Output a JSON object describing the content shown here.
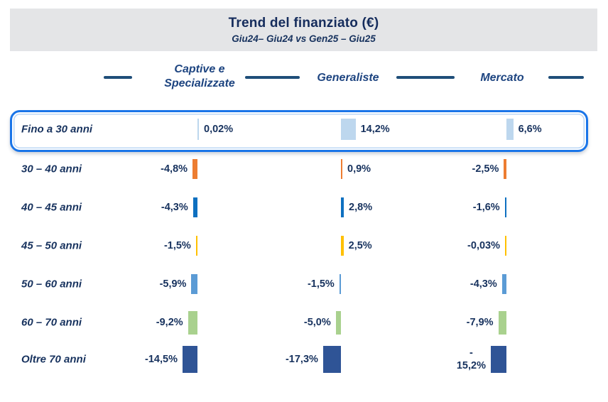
{
  "header": {
    "title": "Trend del finanziato (€)",
    "subtitle": "Giu24– Giu24 vs Gen25 – Giu25"
  },
  "chart_data": {
    "type": "bar",
    "orientation": "diverging-horizontal-by-column",
    "unit": "%",
    "title": "Trend del finanziato (€)",
    "subtitle": "Giu24– Giu24 vs Gen25 – Giu25",
    "groups": [
      "Captive e\nSpecializzate",
      "Generaliste",
      "Mercato"
    ],
    "categories": [
      "Fino a 30 anni",
      "30 – 40 anni",
      "40 – 45 anni",
      "45 – 50 anni",
      "50 – 60 anni",
      "60 – 70 anni",
      "Oltre 70 anni"
    ],
    "series": [
      {
        "name": "Captive e Specializzate",
        "values": [
          0.02,
          -4.8,
          -4.3,
          -1.5,
          -5.9,
          -9.2,
          -14.5
        ],
        "labels": [
          "0,02%",
          "-4,8%",
          "-4,3%",
          "-1,5%",
          "-5,9%",
          "-9,2%",
          "-14,5%"
        ]
      },
      {
        "name": "Generaliste",
        "values": [
          14.2,
          0.9,
          2.8,
          2.5,
          -1.5,
          -5.0,
          -17.3
        ],
        "labels": [
          "14,2%",
          "0,9%",
          "2,8%",
          "2,5%",
          "-1,5%",
          "-5,0%",
          "-17,3%"
        ]
      },
      {
        "name": "Mercato",
        "values": [
          6.6,
          -2.5,
          -1.6,
          -0.03,
          -4.3,
          -7.9,
          -15.2
        ],
        "labels": [
          "6,6%",
          "-2,5%",
          "-1,6%",
          "-0,03%",
          "-4,3%",
          "-7,9%",
          "-\n15,2%"
        ]
      }
    ],
    "row_colors": [
      "#BDD7EE",
      "#ED7D31",
      "#0E70C0",
      "#FFC000",
      "#5B9BD5",
      "#A9D18E",
      "#2F5496"
    ],
    "highlight_row": 0,
    "legend_position": "none",
    "grid": false
  },
  "colors": {
    "header_background": "#E4E5E7",
    "title_text": "#152C5C",
    "label_text": "#17325E",
    "group_header_text": "#1D4480",
    "header_rule": "#1F4E79",
    "highlight_border": "#1A75E8",
    "page_background": "#FFFFFF"
  }
}
